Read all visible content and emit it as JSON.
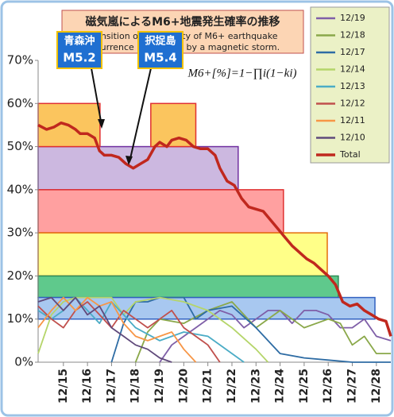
{
  "chart_data": {
    "type": "line",
    "title": "磁気嵐によるM6+地震発生確率の推移",
    "subtitle": [
      "Transition of probability of M6+ earthquake",
      "occurrence probability by a magnetic storm."
    ],
    "formula": "M6+[%]=1−∏i(1−ki)",
    "annotations": [
      [
        "青森沖",
        "M5.2"
      ],
      [
        "択捉島",
        "M5.4"
      ]
    ],
    "xlim": [
      13.95,
      28.6
    ],
    "xticks": [
      {
        "value": 15,
        "label": "12/15"
      },
      {
        "value": 16,
        "label": "12/16"
      },
      {
        "value": 17,
        "label": "12/17"
      },
      {
        "value": 18,
        "label": "12/18"
      },
      {
        "value": 19,
        "label": "12/19"
      },
      {
        "value": 20,
        "label": "12/20"
      },
      {
        "value": 21,
        "label": "12/21"
      },
      {
        "value": 22,
        "label": "12/22"
      },
      {
        "value": 23,
        "label": "12/23"
      },
      {
        "value": 24,
        "label": "12/24"
      },
      {
        "value": 25,
        "label": "12/25"
      },
      {
        "value": 26,
        "label": "12/26"
      },
      {
        "value": 27,
        "label": "12/27"
      },
      {
        "value": 28,
        "label": "12/28"
      }
    ],
    "ylim": [
      0,
      70
    ],
    "yticks": [
      {
        "value": 0,
        "label": "0%"
      },
      {
        "value": 10,
        "label": "10%"
      },
      {
        "value": 20,
        "label": "20%"
      },
      {
        "value": 30,
        "label": "30%"
      },
      {
        "value": 40,
        "label": "40%"
      },
      {
        "value": 50,
        "label": "50%"
      },
      {
        "value": 60,
        "label": "60%"
      },
      {
        "value": 70,
        "label": "70%"
      }
    ],
    "grid": false,
    "bands": [
      {
        "x": [
          13.95,
          22.26
        ],
        "y": [
          40,
          50
        ],
        "color": "#ccb8e0",
        "stroke": "#7030a0"
      },
      {
        "x": [
          13.95,
          24.14
        ],
        "y": [
          30,
          40
        ],
        "color": "#ffa0a0",
        "stroke": "#e03030"
      },
      {
        "x": [
          13.95,
          25.96
        ],
        "y": [
          20,
          30
        ],
        "color": "#ffff88",
        "stroke": "#e46c0a"
      },
      {
        "x": [
          13.95,
          26.42
        ],
        "y": [
          15,
          20
        ],
        "color": "#5fc98c",
        "stroke": "#2e8b57"
      },
      {
        "x": [
          13.95,
          27.94
        ],
        "y": [
          10,
          15
        ],
        "color": "#a8c8f0",
        "stroke": "#3060c0"
      },
      {
        "x": [
          13.95,
          16.52
        ],
        "y": [
          50,
          60
        ],
        "color": "#fbc55e",
        "stroke": "#e03030"
      },
      {
        "x": [
          18.63,
          20.5
        ],
        "y": [
          50,
          60
        ],
        "color": "#fbc55e",
        "stroke": "#e03030"
      }
    ],
    "series": [
      {
        "name": "12/19",
        "color": "#7f5fa8",
        "x": [
          19,
          19.5,
          20,
          20.5,
          21,
          21.5,
          22,
          22.5,
          23,
          23.5,
          24,
          24.5,
          25,
          25.5,
          26,
          26.5,
          27,
          27.5,
          28,
          28.6
        ],
        "values": [
          0,
          4,
          6,
          8,
          10,
          12,
          11,
          8,
          10,
          12,
          12,
          9,
          12,
          12,
          11,
          8,
          8,
          10,
          6,
          5
        ]
      },
      {
        "name": "12/18",
        "color": "#8aa84a",
        "x": [
          18,
          18.5,
          19,
          20,
          21,
          22,
          23,
          24,
          25,
          26,
          26.5,
          27,
          27.5,
          28,
          28.6
        ],
        "values": [
          0,
          7,
          10,
          9,
          12,
          14,
          8,
          12,
          8,
          10,
          9,
          4,
          6,
          2,
          2
        ]
      },
      {
        "name": "12/17",
        "color": "#2e6ca4",
        "x": [
          17,
          17.5,
          18,
          18.5,
          19,
          19.5,
          20,
          20.5,
          21,
          22,
          23,
          24,
          25,
          26,
          27,
          28.6
        ],
        "values": [
          0,
          9,
          14,
          14,
          15,
          15,
          15,
          10,
          12,
          13,
          8,
          2,
          1,
          0.5,
          0,
          0
        ]
      },
      {
        "name": "12/14",
        "color": "#b5d56a",
        "x": [
          13.95,
          14.5,
          15,
          15.5,
          16,
          16.5,
          17,
          17.5,
          18,
          19,
          20,
          21,
          22,
          23,
          23.5
        ],
        "values": [
          2,
          11,
          14,
          15,
          15,
          15,
          15,
          11,
          14,
          15,
          14,
          12,
          8,
          3,
          0
        ]
      },
      {
        "name": "12/13",
        "color": "#4bacc6",
        "x": [
          13.95,
          14.5,
          15,
          15.5,
          16,
          16.5,
          17,
          17.5,
          18,
          19,
          20,
          21,
          22,
          22.5
        ],
        "values": [
          12,
          10,
          12,
          15,
          12,
          9,
          14,
          11,
          8,
          5,
          7,
          6,
          2,
          0
        ]
      },
      {
        "name": "12/12",
        "color": "#c0504d",
        "x": [
          13.95,
          14.5,
          15,
          15.5,
          16,
          16.5,
          17,
          17.5,
          18,
          18.5,
          19,
          19.5,
          20,
          21,
          21.5
        ],
        "values": [
          13,
          10,
          8,
          12,
          14,
          11,
          8,
          12,
          10,
          8,
          10,
          12,
          8,
          4,
          0
        ]
      },
      {
        "name": "12/11",
        "color": "#f79646",
        "x": [
          13.95,
          14.5,
          15,
          15.5,
          16,
          16.5,
          17,
          17.5,
          18,
          18.5,
          19,
          19.5,
          20,
          20.5
        ],
        "values": [
          8,
          12,
          15,
          12,
          15,
          13,
          14,
          9,
          6,
          5,
          6,
          7,
          3,
          0
        ]
      },
      {
        "name": "12/10",
        "color": "#604a7b",
        "x": [
          13.95,
          14.5,
          15,
          15.5,
          16,
          16.5,
          17,
          17.5,
          18,
          18.5,
          19,
          19.5
        ],
        "values": [
          14,
          15,
          12,
          15,
          11,
          13,
          8,
          6,
          4,
          3,
          1,
          0
        ]
      },
      {
        "name": "Total",
        "color": "#c0281e",
        "width": 3.5,
        "x": [
          13.95,
          14.3,
          14.6,
          14.9,
          15.2,
          15.5,
          15.7,
          16.0,
          16.3,
          16.5,
          16.7,
          17.0,
          17.3,
          17.6,
          17.9,
          18.2,
          18.5,
          18.8,
          19.0,
          19.3,
          19.5,
          19.8,
          20.1,
          20.4,
          20.7,
          21.0,
          21.3,
          21.5,
          21.8,
          22.1,
          22.4,
          22.7,
          23.0,
          23.3,
          23.6,
          23.9,
          24.2,
          24.5,
          24.8,
          25.1,
          25.4,
          25.7,
          26.0,
          26.3,
          26.6,
          26.9,
          27.2,
          27.5,
          27.8,
          28.1,
          28.4,
          28.6
        ],
        "values": [
          55,
          54,
          54.5,
          55.5,
          55,
          54,
          53,
          53,
          52,
          49,
          48,
          48,
          47.5,
          46,
          45,
          46,
          47,
          50,
          51,
          50,
          51.5,
          52,
          51.5,
          50,
          49.5,
          49.5,
          48,
          45,
          42,
          41,
          38,
          36,
          35.5,
          35,
          33,
          31,
          29,
          27,
          25.5,
          24,
          23,
          21.5,
          20,
          18,
          14,
          13,
          13.5,
          12,
          11,
          10,
          9.5,
          6
        ]
      }
    ]
  }
}
